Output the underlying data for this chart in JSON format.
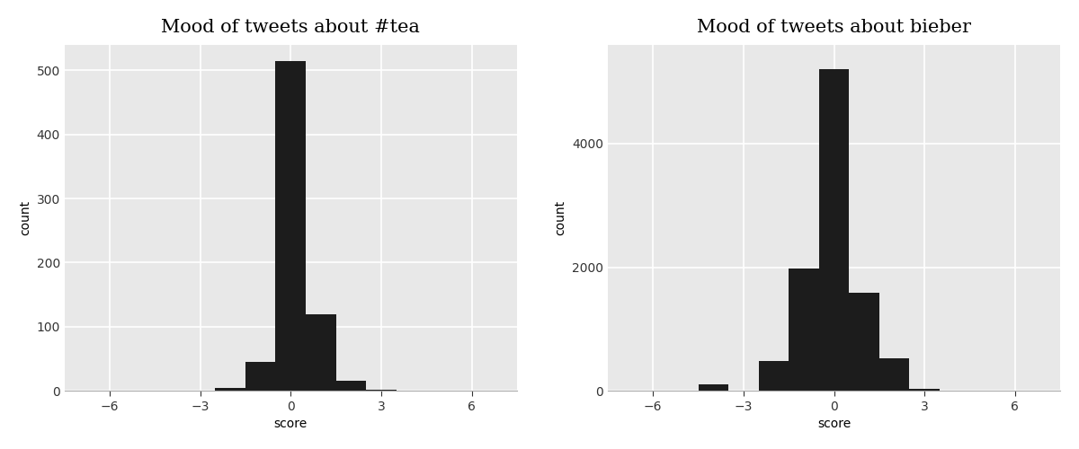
{
  "tea": {
    "title": "Mood of tweets about #tea",
    "bin_centers": [
      -2,
      -1,
      0,
      1,
      2,
      3
    ],
    "counts": [
      5,
      45,
      515,
      120,
      15,
      2
    ],
    "ylabel": "count",
    "xlabel": "score",
    "xlim": [
      -7.5,
      7.5
    ],
    "ylim": [
      0,
      540
    ],
    "yticks": [
      0,
      100,
      200,
      300,
      400,
      500
    ],
    "xticks": [
      -6,
      -3,
      0,
      3,
      6
    ]
  },
  "bieber": {
    "title": "Mood of tweets about bieber",
    "bin_centers": [
      -4,
      -3,
      -2,
      -1,
      0,
      1,
      2,
      3
    ],
    "counts": [
      100,
      10,
      480,
      1980,
      5200,
      1580,
      520,
      30
    ],
    "ylabel": "count",
    "xlabel": "score",
    "xlim": [
      -7.5,
      7.5
    ],
    "ylim": [
      0,
      5600
    ],
    "yticks": [
      0,
      2000,
      4000
    ],
    "xticks": [
      -6,
      -3,
      0,
      3,
      6
    ]
  },
  "bar_color": "#1c1c1c",
  "bg_color": "#e8e8e8",
  "title_fontsize": 15,
  "label_fontsize": 10,
  "tick_fontsize": 10,
  "title_font": "DejaVu Serif",
  "grid_color": "#ffffff",
  "grid_linewidth": 1.2
}
